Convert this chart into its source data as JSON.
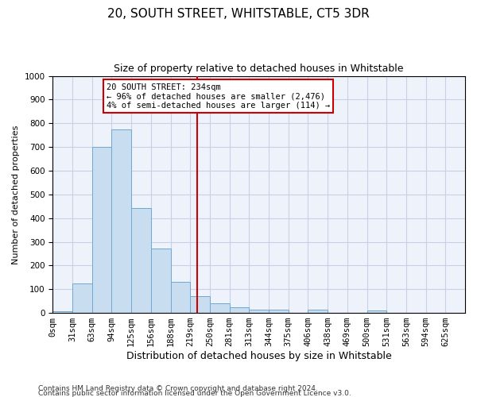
{
  "title": "20, SOUTH STREET, WHITSTABLE, CT5 3DR",
  "subtitle": "Size of property relative to detached houses in Whitstable",
  "xlabel": "Distribution of detached houses by size in Whitstable",
  "ylabel": "Number of detached properties",
  "bin_labels": [
    "0sqm",
    "31sqm",
    "63sqm",
    "94sqm",
    "125sqm",
    "156sqm",
    "188sqm",
    "219sqm",
    "250sqm",
    "281sqm",
    "313sqm",
    "344sqm",
    "375sqm",
    "406sqm",
    "438sqm",
    "469sqm",
    "500sqm",
    "531sqm",
    "563sqm",
    "594sqm",
    "625sqm"
  ],
  "bar_values": [
    8,
    125,
    700,
    775,
    443,
    273,
    132,
    70,
    40,
    23,
    13,
    13,
    0,
    13,
    0,
    0,
    10,
    0,
    0,
    0,
    0
  ],
  "bar_color": "#c8ddf0",
  "bar_edge_color": "#6fa8d0",
  "vline_x_bin": 7.35,
  "vline_color": "#cc0000",
  "ylim": [
    0,
    1000
  ],
  "yticks": [
    0,
    100,
    200,
    300,
    400,
    500,
    600,
    700,
    800,
    900,
    1000
  ],
  "annotation_title": "20 SOUTH STREET: 234sqm",
  "annotation_line1": "← 96% of detached houses are smaller (2,476)",
  "annotation_line2": "4% of semi-detached houses are larger (114) →",
  "annotation_box_color": "#cc0000",
  "footer_line1": "Contains HM Land Registry data © Crown copyright and database right 2024.",
  "footer_line2": "Contains public sector information licensed under the Open Government Licence v3.0.",
  "bg_color": "#eef2fb",
  "grid_color": "#c8d0e8",
  "title_fontsize": 11,
  "subtitle_fontsize": 9,
  "xlabel_fontsize": 9,
  "ylabel_fontsize": 8,
  "tick_fontsize": 7.5,
  "footer_fontsize": 6.5
}
